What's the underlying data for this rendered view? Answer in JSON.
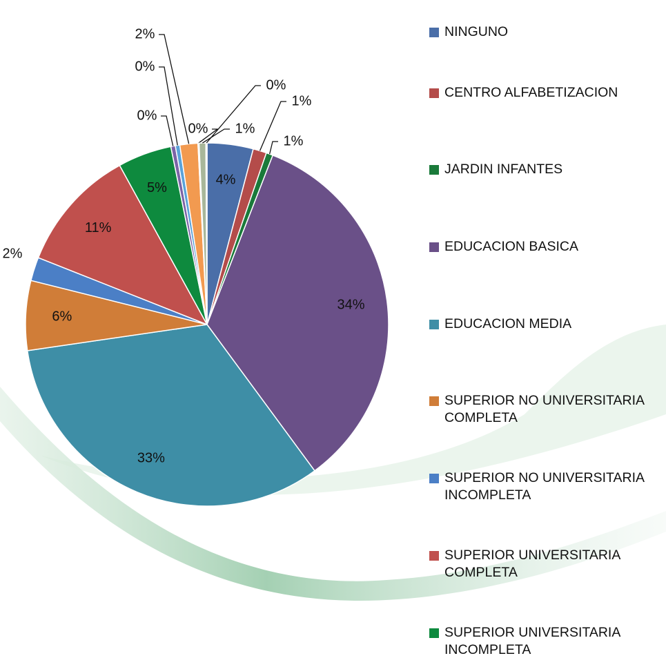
{
  "chart_data": {
    "type": "pie",
    "categories": [
      "NINGUNO",
      "CENTRO ALFABETIZACION",
      "JARDIN INFANTES",
      "EDUCACION BASICA",
      "EDUCACION MEDIA",
      "SUPERIOR NO UNIVERSITARIA COMPLETA",
      "SUPERIOR NO UNIVERSITARIA INCOMPLETA",
      "SUPERIOR UNIVERSITARIA COMPLETA",
      "SUPERIOR UNIVERSITARIA INCOMPLETA",
      null,
      null,
      null,
      null,
      null,
      null
    ],
    "values": [
      4.1,
      1.2,
      0.6,
      34.0,
      32.8,
      6.2,
      2.1,
      11.0,
      4.8,
      0.4,
      0.4,
      1.6,
      0.1,
      0.6,
      0.1
    ],
    "value_labels": [
      "4%",
      "1%",
      "1%",
      "34%",
      "33%",
      "6%",
      "2%",
      "11%",
      "5%",
      "0%",
      "0%",
      "2%",
      "0%",
      "1%",
      "0%"
    ],
    "colors": [
      "#4a6ea8",
      "#b44c4a",
      "#1a7a3a",
      "#6a5088",
      "#3e8ea6",
      "#d07d38",
      "#4b7fc6",
      "#c0504d",
      "#0e8a3e",
      "#7b63a6",
      "#5aa2d8",
      "#f29a50",
      "#9cc27a",
      "#a8b79a",
      "#b7c9dc"
    ],
    "legend": "right"
  }
}
